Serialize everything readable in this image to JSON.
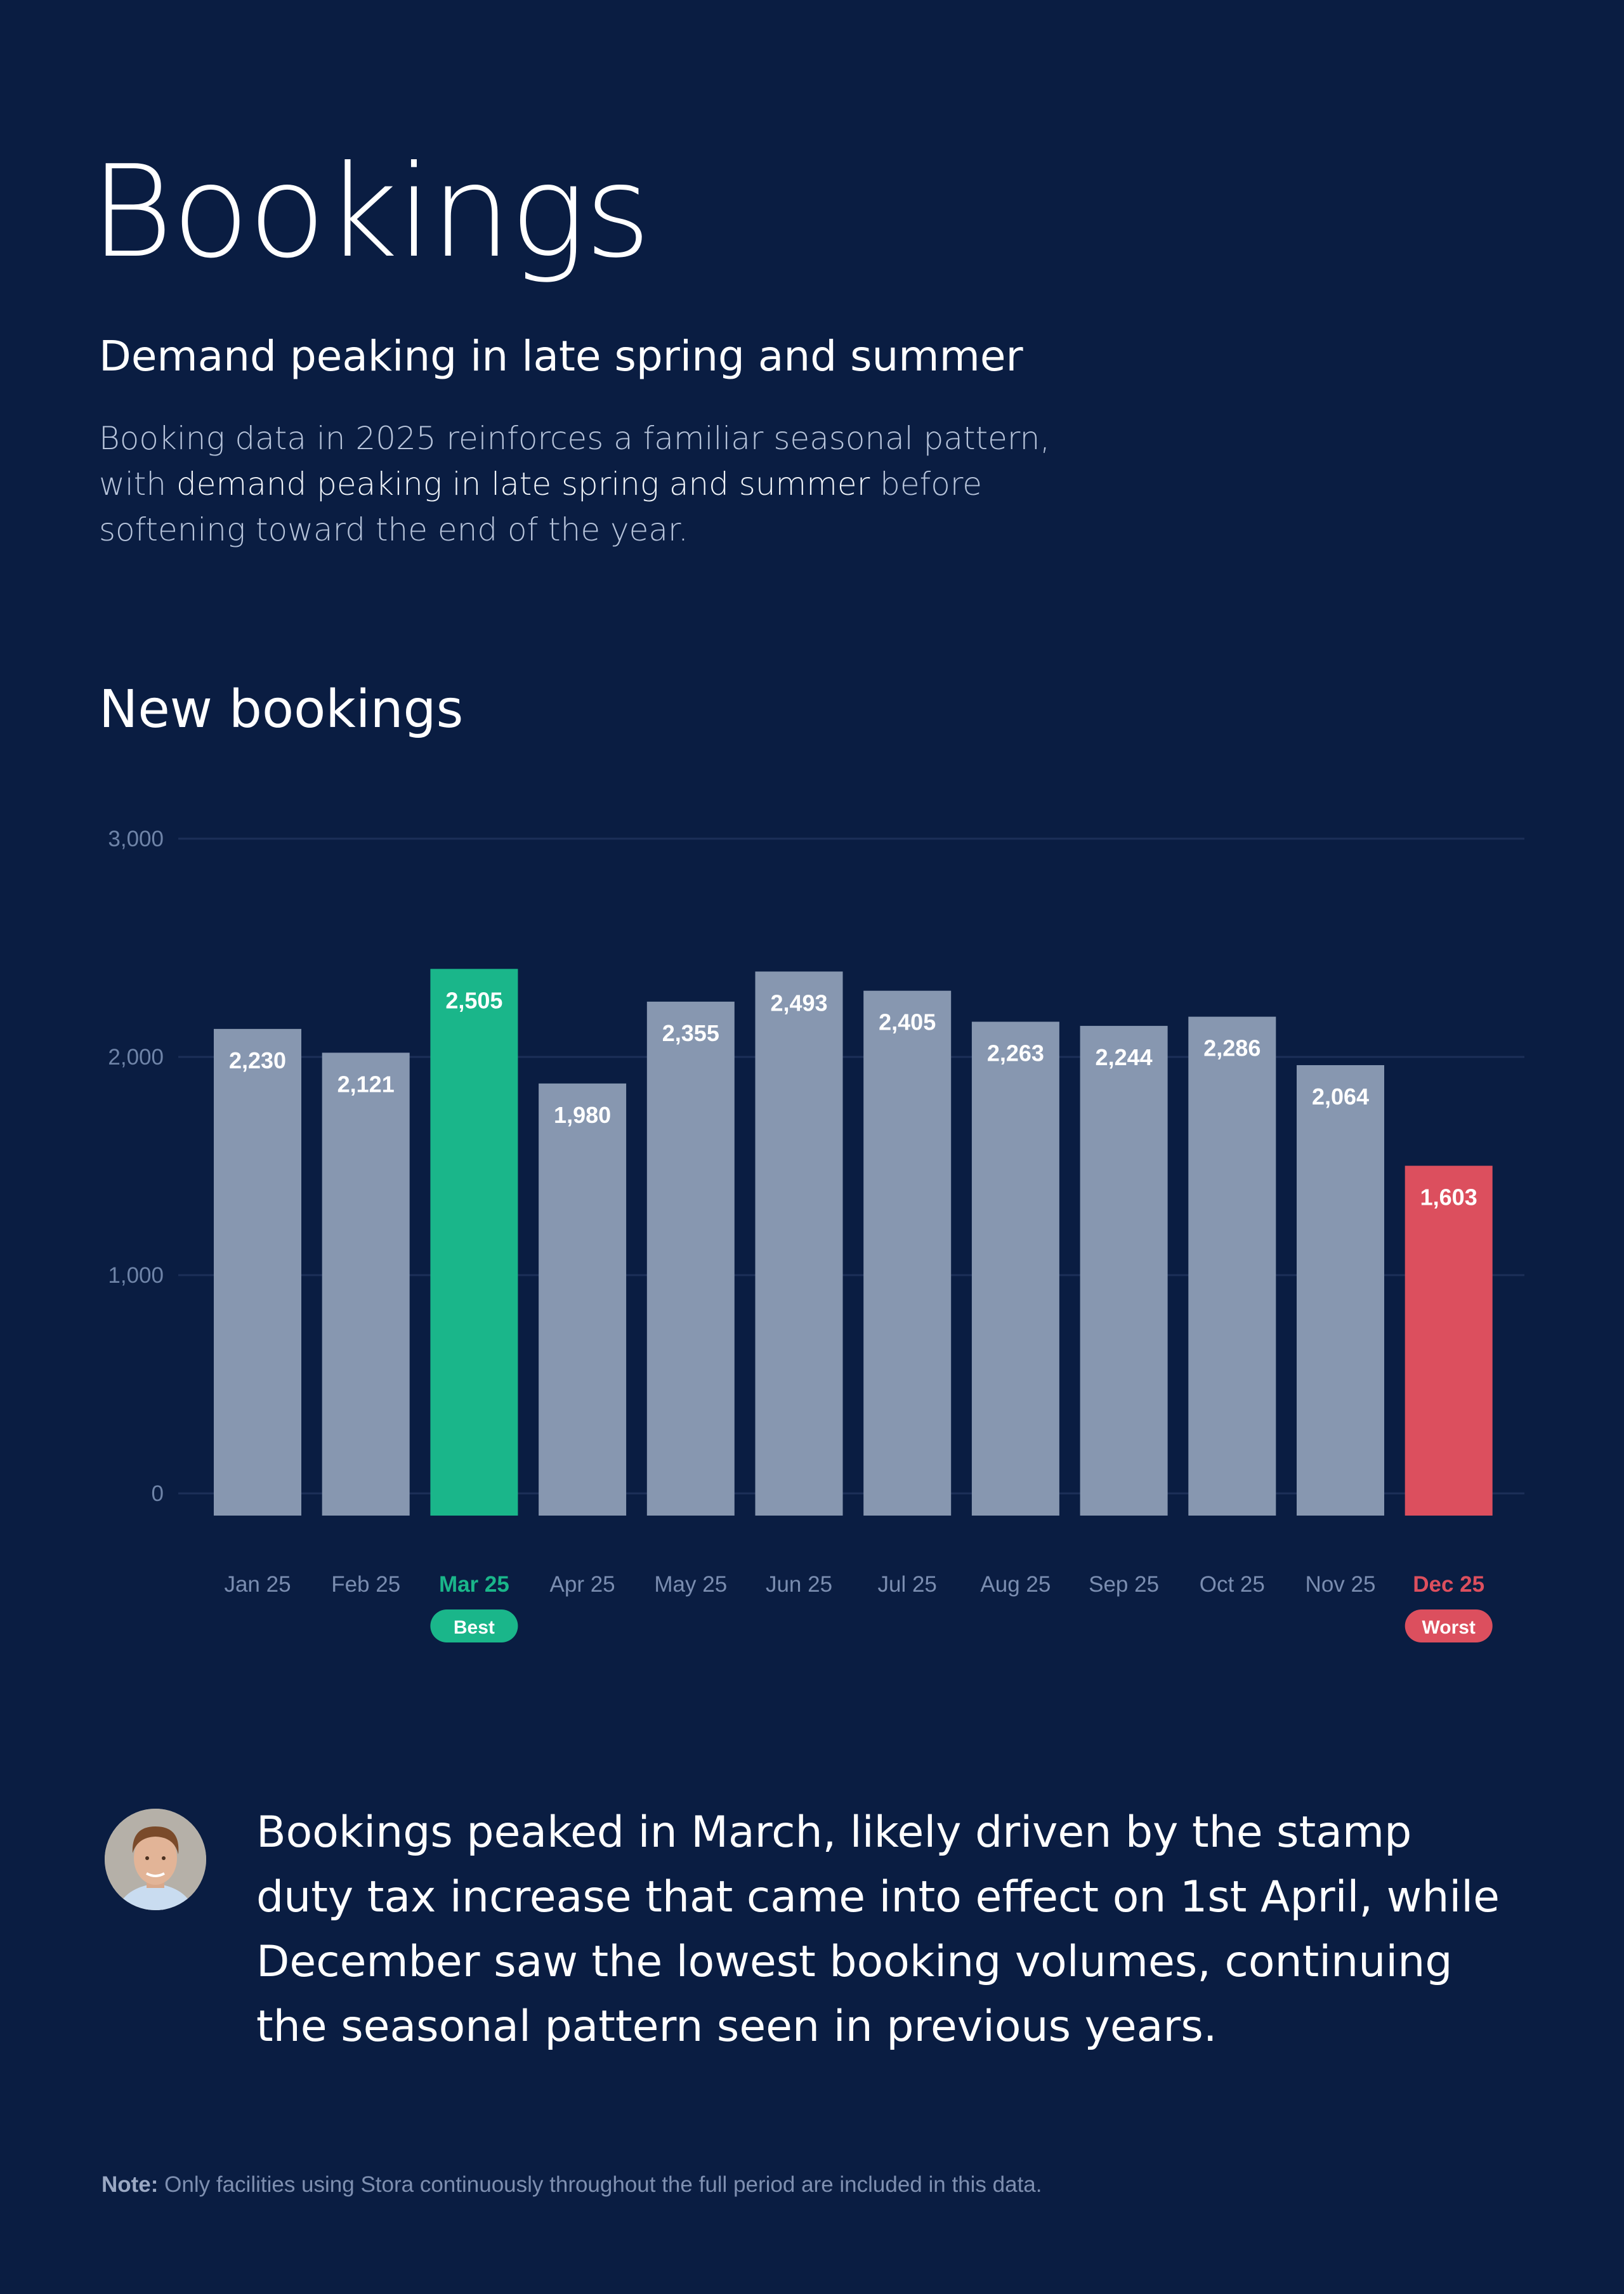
{
  "header": {
    "title": "Bookings",
    "subtitle": "Demand peaking in late spring and summer",
    "intro_part1": "Booking data in 2025 reinforces a familiar seasonal pattern, with ",
    "intro_highlight": "demand peaking in late spring and summer",
    "intro_part2": " before softening toward the end of the year."
  },
  "chart_data": {
    "type": "bar",
    "title": "New bookings",
    "categories": [
      "Jan 25",
      "Feb 25",
      "Mar 25",
      "Apr 25",
      "May 25",
      "Jun 25",
      "Jul 25",
      "Aug 25",
      "Sep 25",
      "Oct 25",
      "Nov 25",
      "Dec 25"
    ],
    "values": [
      2230,
      2121,
      2505,
      1980,
      2355,
      2493,
      2405,
      2263,
      2244,
      2286,
      2064,
      1603
    ],
    "value_labels": [
      "2,230",
      "2,121",
      "2,505",
      "1,980",
      "2,355",
      "2,493",
      "2,405",
      "2,263",
      "2,244",
      "2,286",
      "2,064",
      "1,603"
    ],
    "yticks": [
      0,
      1000,
      2000,
      3000
    ],
    "ytick_labels": [
      "0",
      "1,000",
      "2,000",
      "3,000"
    ],
    "ylim": [
      0,
      3000
    ],
    "grid": true,
    "highlights": {
      "best": {
        "index": 2,
        "label": "Best",
        "color": "#1ab68a"
      },
      "worst": {
        "index": 11,
        "label": "Worst",
        "color": "#dc4f5e"
      }
    },
    "bar_color": "#8797b0"
  },
  "quote": {
    "text": "Bookings peaked in March, likely driven by the stamp duty tax increase that came into effect on 1st April, while December saw the lowest booking volumes, continuing the seasonal pattern seen in previous years."
  },
  "note": {
    "label": "Note:",
    "text": " Only facilities using Stora continuously throughout the full period are included in this data."
  }
}
